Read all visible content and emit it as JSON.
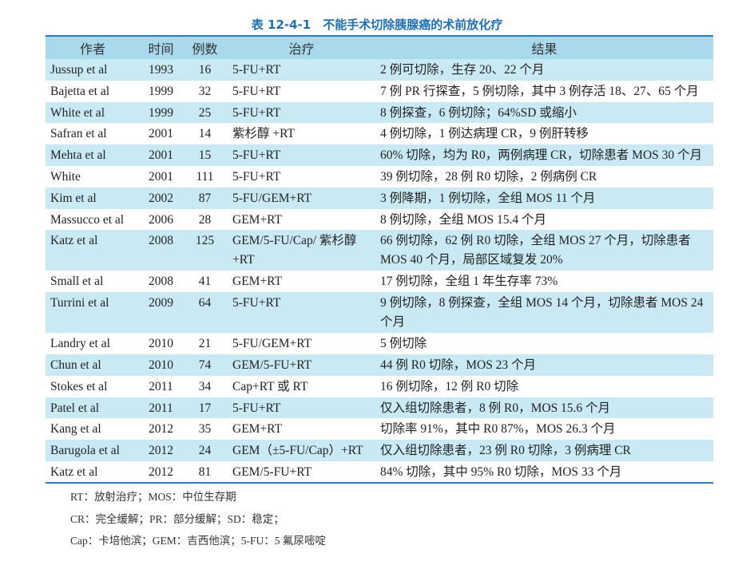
{
  "title": "表 12-4-1　不能手术切除胰腺癌的术前放化疗",
  "columns": [
    "作者",
    "时间",
    "例数",
    "治疗",
    "结果"
  ],
  "rows": [
    [
      "Jussup et al",
      "1993",
      "16",
      "5-FU+RT",
      "2 例可切除，生存 20、22 个月"
    ],
    [
      "Bajetta et al",
      "1999",
      "32",
      "5-FU+RT",
      "7 例 PR 行探查，5 例切除，其中 3 例存活 18、27、65 个月"
    ],
    [
      "White et al",
      "1999",
      "25",
      "5-FU+RT",
      "8 例探查，6 例切除；64%SD 或缩小"
    ],
    [
      "Safran et al",
      "2001",
      "14",
      "紫杉醇 +RT",
      "4 例切除，1 例达病理 CR，9 例肝转移"
    ],
    [
      "Mehta et al",
      "2001",
      "15",
      "5-FU+RT",
      "60% 切除，均为 R0，两例病理 CR，切除患者 MOS 30 个月"
    ],
    [
      "White",
      "2001",
      "111",
      "5-FU+RT",
      "39 例切除，28 例 R0 切除，2 例病例 CR"
    ],
    [
      "Kim et al",
      "2002",
      "87",
      "5-FU/GEM+RT",
      "3 例降期，1 例切除，全组 MOS 11 个月"
    ],
    [
      "Massucco et al",
      "2006",
      "28",
      "GEM+RT",
      "8 例切除，全组 MOS 15.4 个月"
    ],
    [
      "Katz et al",
      "2008",
      "125",
      "GEM/5-FU/Cap/ 紫杉醇 +RT",
      "66 例切除，62 例 R0 切除，全组 MOS 27 个月，切除患者 MOS 40 个月，局部区域复发 20%"
    ],
    [
      "Small et al",
      "2008",
      "41",
      "GEM+RT",
      "17 例切除，全组 1 年生存率 73%"
    ],
    [
      "Turrini et al",
      "2009",
      "64",
      "5-FU+RT",
      "9 例切除，8 例探查，全组 MOS 14 个月，切除患者 MOS 24 个月"
    ],
    [
      "Landry et al",
      "2010",
      "21",
      "5-FU/GEM+RT",
      "5 例切除"
    ],
    [
      "Chun et al",
      "2010",
      "74",
      "GEM/5-FU+RT",
      "44 例 R0 切除，MOS 23 个月"
    ],
    [
      "Stokes et al",
      "2011",
      "34",
      "Cap+RT 或 RT",
      "16 例切除，12 例 R0 切除"
    ],
    [
      "Patel et al",
      "2011",
      "17",
      "5-FU+RT",
      "仅入组切除患者，8 例 R0，MOS 15.6 个月"
    ],
    [
      "Kang et al",
      "2012",
      "35",
      "GEM+RT",
      "切除率 91%，其中 R0 87%，MOS 26.3 个月"
    ],
    [
      "Barugola et al",
      "2012",
      "24",
      "GEM（±5-FU/Cap）+RT",
      "仅入组切除患者，23 例 R0 切除，3 例病理 CR"
    ],
    [
      "Katz et al",
      "2012",
      "81",
      "GEM/5-FU+RT",
      "84% 切除，其中 95% R0 切除，MOS 33 个月"
    ]
  ],
  "notes": [
    "RT：放射治疗；MOS：中位生存期",
    "CR：完全缓解；PR：部分缓解；SD：稳定；",
    "Cap：卡培他滨；GEM：吉西他滨；5-FU：5 氟尿嘧啶"
  ],
  "colors": {
    "header": "#a9d9ec",
    "stripe": "#c9eaf5",
    "rule": "#2b79c2",
    "title": "#1f6fb5"
  }
}
